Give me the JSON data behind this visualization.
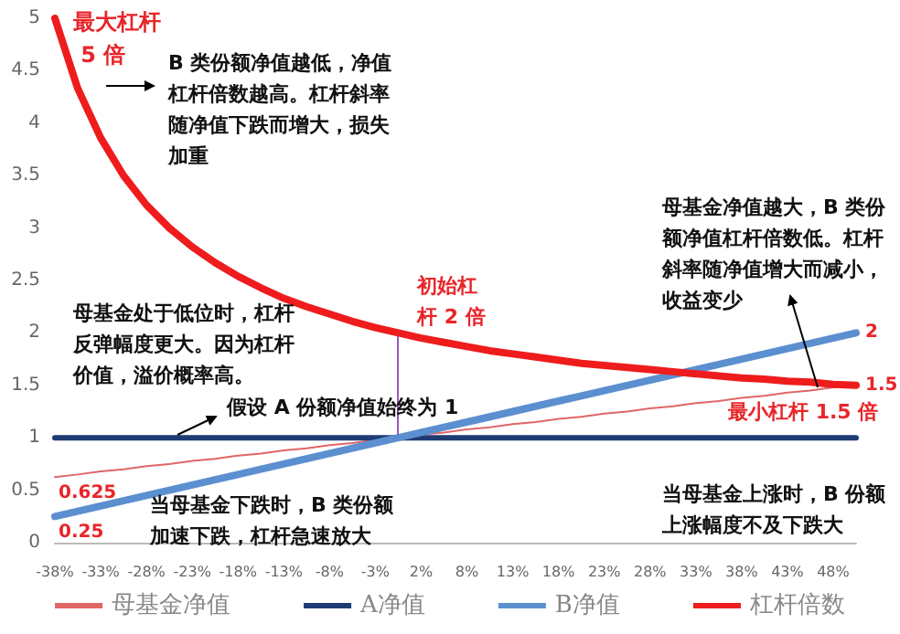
{
  "chart_data": {
    "type": "line",
    "categories": [
      "-38%",
      null,
      "-33%",
      null,
      "-28%",
      null,
      "-23%",
      null,
      "-18%",
      null,
      "-13%",
      null,
      "-8%",
      null,
      "-3%",
      null,
      "2%",
      null,
      "8%",
      null,
      "13%",
      null,
      "18%",
      null,
      "23%",
      null,
      "28%",
      null,
      "33%",
      null,
      "38%",
      null,
      "43%",
      null,
      "48%",
      null
    ],
    "series": [
      {
        "name": "母基金净值",
        "color": "#e06666",
        "values": [
          0.625,
          0.65,
          0.68,
          0.7,
          0.73,
          0.75,
          0.78,
          0.8,
          0.83,
          0.85,
          0.88,
          0.9,
          0.93,
          0.95,
          0.98,
          1,
          1.03,
          1.05,
          1.08,
          1.1,
          1.13,
          1.15,
          1.18,
          1.2,
          1.23,
          1.25,
          1.28,
          1.3,
          1.33,
          1.35,
          1.38,
          1.4,
          1.43,
          1.45,
          1.48,
          1.5
        ],
        "value_labels": [
          "0.625",
          null,
          null,
          null,
          null,
          null,
          null,
          null,
          null,
          null,
          null,
          null,
          null,
          null,
          null,
          null,
          null,
          null,
          null,
          null,
          null,
          null,
          null,
          null,
          null,
          null,
          null,
          null,
          null,
          null,
          null,
          null,
          null,
          null,
          null,
          null
        ]
      },
      {
        "name": "A净值",
        "color": "#1f3b73",
        "values": [
          1,
          1,
          1,
          1,
          1,
          1,
          1,
          1,
          1,
          1,
          1,
          1,
          1,
          1,
          1,
          1,
          1,
          1,
          1,
          1,
          1,
          1,
          1,
          1,
          1,
          1,
          1,
          1,
          1,
          1,
          1,
          1,
          1,
          1,
          1,
          1
        ]
      },
      {
        "name": "B净值",
        "color": "#5b8fd0",
        "values": [
          0.25,
          0.3,
          0.35,
          0.4,
          0.45,
          0.5,
          0.55,
          0.6,
          0.65,
          0.7,
          0.75,
          0.8,
          0.85,
          0.9,
          0.95,
          1,
          1.05,
          1.1,
          1.15,
          1.2,
          1.25,
          1.3,
          1.35,
          1.4,
          1.45,
          1.5,
          1.55,
          1.6,
          1.65,
          1.7,
          1.75,
          1.8,
          1.85,
          1.9,
          1.95,
          2
        ],
        "value_labels": [
          "0.25",
          null,
          null,
          null,
          null,
          null,
          null,
          null,
          null,
          null,
          null,
          null,
          null,
          null,
          null,
          null,
          null,
          null,
          null,
          null,
          null,
          null,
          null,
          null,
          null,
          null,
          null,
          null,
          null,
          null,
          null,
          null,
          null,
          null,
          null,
          "2"
        ]
      },
      {
        "name": "杠杆倍数",
        "color": "#ee1c1c",
        "values": [
          5,
          4.33,
          3.86,
          3.5,
          3.22,
          3,
          2.82,
          2.67,
          2.54,
          2.43,
          2.33,
          2.25,
          2.18,
          2.11,
          2.05,
          2,
          1.95,
          1.91,
          1.87,
          1.83,
          1.8,
          1.77,
          1.74,
          1.71,
          1.69,
          1.67,
          1.65,
          1.63,
          1.61,
          1.59,
          1.57,
          1.56,
          1.54,
          1.53,
          1.51,
          1.5
        ],
        "value_labels": [
          null,
          null,
          null,
          null,
          null,
          null,
          null,
          null,
          null,
          null,
          null,
          null,
          null,
          null,
          null,
          null,
          null,
          null,
          null,
          null,
          null,
          null,
          null,
          null,
          null,
          null,
          null,
          null,
          null,
          null,
          null,
          null,
          null,
          null,
          null,
          "1.5"
        ]
      }
    ],
    "ylim": [
      0,
      5
    ],
    "yticks": [
      0,
      0.5,
      1,
      1.5,
      2,
      2.5,
      3,
      3.5,
      4,
      4.5,
      5
    ],
    "grid": false,
    "legend": "bottom",
    "marker": "none",
    "line_style": "solid",
    "annotations": [
      "最大杠杆 5 倍",
      "B 类份额净值越低，净值杠杆倍数越高。杠杆斜率随净值下跌而增大，损失加重",
      "母基金处于低位时，杠杆反弹幅度更大。因为杠杆价值，溢价概率高。",
      {
        "text": "初始杠杆 2 倍",
        "y": 2
      },
      "母基金净值越大，B 类份额净值杠杆倍数低。杠杆斜率随净值增大而减小，收益变少",
      {
        "text": "假设 A 份额净值始终为 1",
        "y": 1
      },
      {
        "text": "最小杠杆 1.5 倍",
        "y": 1.5
      },
      "当母基金下跌时，B 类份额加速下跌，杠杆急速放大",
      "当母基金上涨时，B 份额上涨幅度不及下跌大"
    ]
  }
}
